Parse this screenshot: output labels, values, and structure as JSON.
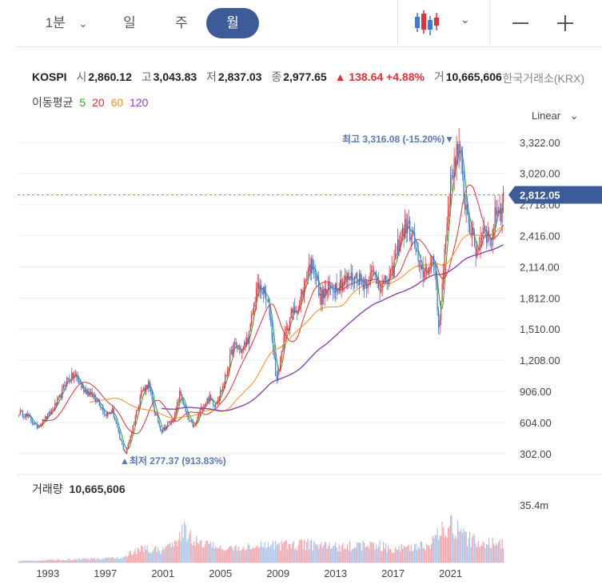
{
  "toolbar": {
    "periods": [
      "1분",
      "일",
      "주",
      "월"
    ],
    "active_period": "월"
  },
  "quote": {
    "symbol": "KOSPI",
    "open_label": "시",
    "open": "2,860.12",
    "high_label": "고",
    "high": "3,043.83",
    "low_label": "저",
    "low": "2,837.03",
    "close_label": "종",
    "close": "2,977.65",
    "change": "▲ 138.64 +4.88%",
    "volume_label": "거",
    "volume": "10,665,606",
    "exchange": "한국거래소(KRX)"
  },
  "ma": {
    "title": "이동평균",
    "p5": "5",
    "p20": "20",
    "p60": "60",
    "p120": "120",
    "colors": {
      "p5": "#2ca02c",
      "p20": "#e0323a",
      "p60": "#ff8c1a",
      "p120": "#8e44ad"
    }
  },
  "scale_mode": "Linear",
  "colors": {
    "up": "#e0323a",
    "down": "#3a7bd5",
    "accent": "#3d5a99"
  },
  "chart_data": {
    "type": "candlestick",
    "title": "KOSPI",
    "y_ticks": [
      302,
      604,
      906,
      1208,
      1510,
      1812,
      2114,
      2416,
      2718,
      3020,
      3322
    ],
    "y_tick_labels": [
      "302.00",
      "604.00",
      "906.00",
      "1,208.00",
      "1,510.00",
      "1,812.00",
      "2,114.00",
      "2,416.00",
      "2,718.00",
      "3,020.00",
      "3,322.00"
    ],
    "ylim": [
      200,
      3460
    ],
    "x_tick_labels": [
      "1993",
      "1997",
      "2001",
      "2005",
      "2009",
      "2013",
      "2017",
      "2021"
    ],
    "xlim": [
      1990.9,
      2024.8
    ],
    "current_price": "2,812.05",
    "current_value": 2812.05,
    "max_annotation": "최고 3,316.08 (-15.20%)▼",
    "min_annotation": "▲최저 277.37 (913.83%)",
    "volume_title": "거래량",
    "volume_value": "10,665,606",
    "volume_tick_label": "35.4m",
    "close_anchors": [
      [
        1991.0,
        700
      ],
      [
        1991.6,
        670
      ],
      [
        1992.2,
        560
      ],
      [
        1992.7,
        620
      ],
      [
        1993.2,
        700
      ],
      [
        1993.8,
        830
      ],
      [
        1994.3,
        1020
      ],
      [
        1994.9,
        1060
      ],
      [
        1995.4,
        940
      ],
      [
        1995.9,
        880
      ],
      [
        1996.5,
        820
      ],
      [
        1997.0,
        680
      ],
      [
        1997.5,
        720
      ],
      [
        1998.0,
        450
      ],
      [
        1998.4,
        300
      ],
      [
        1998.9,
        560
      ],
      [
        1999.5,
        900
      ],
      [
        2000.0,
        980
      ],
      [
        2000.4,
        720
      ],
      [
        2000.9,
        520
      ],
      [
        2001.3,
        580
      ],
      [
        2001.8,
        650
      ],
      [
        2002.2,
        900
      ],
      [
        2002.7,
        640
      ],
      [
        2003.2,
        560
      ],
      [
        2003.6,
        720
      ],
      [
        2004.2,
        850
      ],
      [
        2004.6,
        780
      ],
      [
        2005.2,
        960
      ],
      [
        2005.9,
        1350
      ],
      [
        2006.5,
        1300
      ],
      [
        2007.0,
        1450
      ],
      [
        2007.5,
        1900
      ],
      [
        2007.9,
        1900
      ],
      [
        2008.4,
        1700
      ],
      [
        2008.9,
        1000
      ],
      [
        2009.4,
        1400
      ],
      [
        2009.9,
        1650
      ],
      [
        2010.5,
        1750
      ],
      [
        2011.1,
        2100
      ],
      [
        2011.5,
        2150
      ],
      [
        2011.9,
        1800
      ],
      [
        2012.5,
        1900
      ],
      [
        2013.2,
        1950
      ],
      [
        2013.8,
        2000
      ],
      [
        2014.5,
        2020
      ],
      [
        2015.0,
        1950
      ],
      [
        2015.6,
        2050
      ],
      [
        2016.2,
        1920
      ],
      [
        2016.9,
        2030
      ],
      [
        2017.4,
        2350
      ],
      [
        2017.9,
        2520
      ],
      [
        2018.4,
        2400
      ],
      [
        2018.9,
        2050
      ],
      [
        2019.4,
        2100
      ],
      [
        2019.9,
        2150
      ],
      [
        2020.2,
        1500
      ],
      [
        2020.6,
        2300
      ],
      [
        2020.9,
        2800
      ],
      [
        2021.3,
        3200
      ],
      [
        2021.6,
        3250
      ],
      [
        2022.0,
        2750
      ],
      [
        2022.5,
        2400
      ],
      [
        2022.8,
        2250
      ],
      [
        2023.3,
        2500
      ],
      [
        2023.8,
        2350
      ],
      [
        2024.2,
        2700
      ],
      [
        2024.5,
        2650
      ],
      [
        2024.7,
        2812
      ]
    ],
    "volume_anchors": [
      [
        1991.0,
        0.03
      ],
      [
        1994.0,
        0.05
      ],
      [
        1998.0,
        0.08
      ],
      [
        1999.5,
        0.25
      ],
      [
        2001.0,
        0.22
      ],
      [
        2002.5,
        0.55
      ],
      [
        2003.5,
        0.35
      ],
      [
        2005.5,
        0.25
      ],
      [
        2009.0,
        0.3
      ],
      [
        2011.0,
        0.33
      ],
      [
        2013.0,
        0.28
      ],
      [
        2015.5,
        0.32
      ],
      [
        2017.0,
        0.25
      ],
      [
        2019.5,
        0.3
      ],
      [
        2020.4,
        0.55
      ],
      [
        2021.0,
        0.7
      ],
      [
        2022.0,
        0.45
      ],
      [
        2023.0,
        0.35
      ],
      [
        2024.7,
        0.35
      ]
    ]
  }
}
